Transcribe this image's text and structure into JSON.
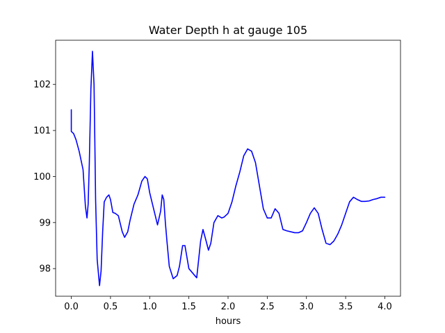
{
  "chart_data": {
    "type": "line",
    "title": "Water Depth h at gauge 105",
    "xlabel": "hours",
    "ylabel": "",
    "xlim": [
      -0.2,
      4.2
    ],
    "ylim": [
      97.4,
      102.96
    ],
    "xticks": [
      0.0,
      0.5,
      1.0,
      1.5,
      2.0,
      2.5,
      3.0,
      3.5,
      4.0
    ],
    "xtick_labels": [
      "0.0",
      "0.5",
      "1.0",
      "1.5",
      "2.0",
      "2.5",
      "3.0",
      "3.5",
      "4.0"
    ],
    "yticks": [
      98,
      99,
      100,
      101,
      102
    ],
    "ytick_labels": [
      "98",
      "99",
      "100",
      "101",
      "102"
    ],
    "grid": false,
    "series": [
      {
        "color": "#0000ff",
        "x": [
          0.0,
          0.0,
          0.0,
          0.03,
          0.06,
          0.1,
          0.15,
          0.18,
          0.2,
          0.215,
          0.23,
          0.25,
          0.27,
          0.29,
          0.3,
          0.31,
          0.33,
          0.36,
          0.38,
          0.4,
          0.42,
          0.45,
          0.48,
          0.5,
          0.53,
          0.56,
          0.6,
          0.65,
          0.68,
          0.72,
          0.75,
          0.8,
          0.85,
          0.9,
          0.94,
          0.97,
          1.0,
          1.05,
          1.1,
          1.14,
          1.16,
          1.18,
          1.2,
          1.22,
          1.25,
          1.3,
          1.35,
          1.38,
          1.42,
          1.45,
          1.47,
          1.5,
          1.55,
          1.6,
          1.65,
          1.68,
          1.72,
          1.75,
          1.78,
          1.82,
          1.87,
          1.92,
          1.95,
          2.0,
          2.05,
          2.1,
          2.15,
          2.2,
          2.25,
          2.3,
          2.35,
          2.4,
          2.45,
          2.5,
          2.55,
          2.6,
          2.65,
          2.7,
          2.75,
          2.8,
          2.85,
          2.9,
          2.95,
          3.0,
          3.05,
          3.1,
          3.15,
          3.2,
          3.25,
          3.3,
          3.35,
          3.4,
          3.45,
          3.5,
          3.55,
          3.6,
          3.65,
          3.7,
          3.75,
          3.8,
          3.85,
          3.9,
          3.95,
          4.0
        ],
        "y": [
          101.45,
          100.98,
          100.98,
          100.93,
          100.8,
          100.55,
          100.15,
          99.35,
          99.1,
          99.4,
          100.3,
          101.9,
          102.72,
          102.0,
          100.8,
          99.5,
          98.2,
          97.63,
          97.95,
          98.8,
          99.45,
          99.55,
          99.6,
          99.5,
          99.22,
          99.2,
          99.15,
          98.8,
          98.68,
          98.8,
          99.05,
          99.4,
          99.6,
          99.9,
          100.0,
          99.95,
          99.65,
          99.3,
          98.95,
          99.25,
          99.6,
          99.5,
          99.0,
          98.6,
          98.05,
          97.78,
          97.85,
          98.05,
          98.5,
          98.5,
          98.3,
          98.0,
          97.9,
          97.8,
          98.6,
          98.85,
          98.6,
          98.4,
          98.55,
          99.0,
          99.15,
          99.1,
          99.12,
          99.2,
          99.45,
          99.8,
          100.1,
          100.45,
          100.6,
          100.55,
          100.3,
          99.8,
          99.3,
          99.1,
          99.1,
          99.3,
          99.2,
          98.85,
          98.82,
          98.8,
          98.78,
          98.78,
          98.82,
          99.0,
          99.2,
          99.32,
          99.2,
          98.85,
          98.55,
          98.52,
          98.6,
          98.75,
          98.95,
          99.2,
          99.45,
          99.55,
          99.5,
          99.46,
          99.46,
          99.47,
          99.5,
          99.52,
          99.55,
          99.55
        ]
      }
    ]
  }
}
